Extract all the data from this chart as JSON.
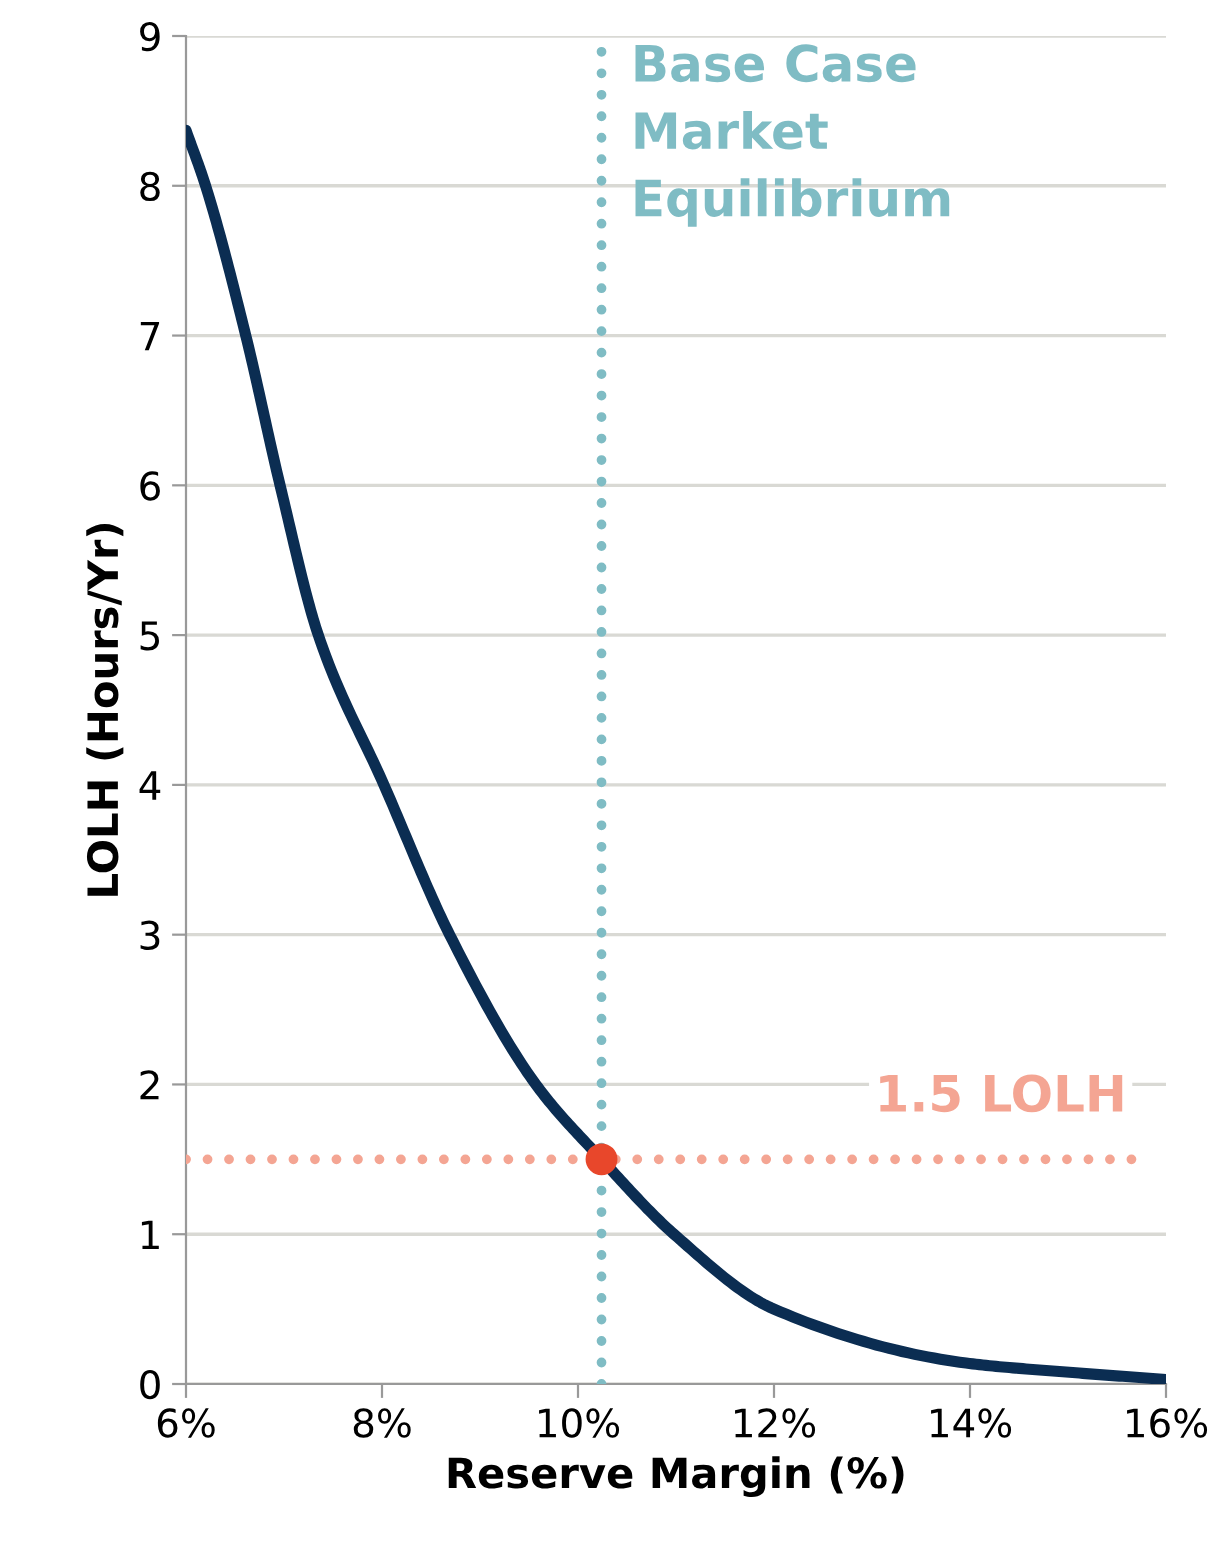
{
  "chart_data": {
    "type": "line",
    "xlabel": "Reserve Margin (%)",
    "ylabel": "LOLH (Hours/Yr)",
    "series": [
      {
        "color": "#0b2d52",
        "x": [
          6.0,
          6.2,
          6.61,
          6.96,
          7.35,
          8.02,
          8.69,
          9.57,
          10.24,
          10.98,
          12.0,
          13.96,
          14.98,
          16.0
        ],
        "values": [
          8.37,
          8.0,
          7.0,
          6.0,
          5.0,
          4.0,
          3.0,
          2.0,
          1.5,
          1.0,
          0.5,
          0.14,
          0.08,
          0.03
        ]
      },
      {
        "type": "scatter",
        "color": "#e8472b",
        "x": [
          10.24
        ],
        "values": [
          1.5
        ]
      }
    ],
    "xlim": [
      6,
      16
    ],
    "xticks": [
      {
        "value": 6,
        "label": "6%"
      },
      {
        "value": 8,
        "label": "8%"
      },
      {
        "value": 10,
        "label": "10%"
      },
      {
        "value": 12,
        "label": "12%"
      },
      {
        "value": 14,
        "label": "14%"
      },
      {
        "value": 16,
        "label": "16%"
      }
    ],
    "ylim": [
      0,
      9
    ],
    "yticks": [
      0,
      1,
      2,
      3,
      4,
      5,
      6,
      7,
      8,
      9
    ],
    "grid": "y",
    "ref_lines": [
      {
        "axis": "x",
        "value": 10.24,
        "label": "Base Case\nMarket\nEquilibrium",
        "color": "#7fbcc4",
        "line_style": "dotted"
      },
      {
        "axis": "y",
        "value": 1.5,
        "label": "1.5 LOLH",
        "color": "#f4a593",
        "line_style": "dotted"
      }
    ]
  }
}
